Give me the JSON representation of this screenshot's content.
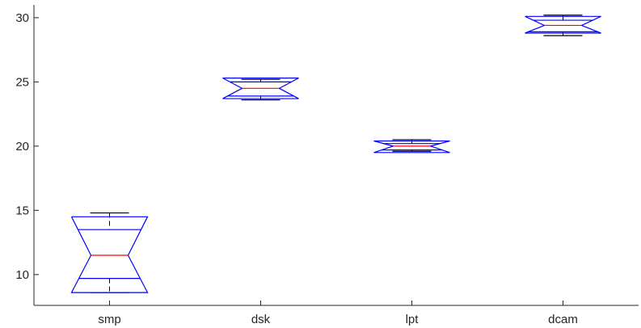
{
  "chart_data": {
    "type": "boxplot",
    "title": "",
    "xlabel": "",
    "ylabel": "",
    "ylim": [
      7.6,
      31.0
    ],
    "yticks": [
      10,
      15,
      20,
      25,
      30
    ],
    "grid": false,
    "notched": true,
    "colors": {
      "box": "#0000ff",
      "median": "#ff0000",
      "whisker": "#000000",
      "axis": "#262626"
    },
    "categories": [
      "smp",
      "dsk",
      "lpt",
      "dcam"
    ],
    "boxes": [
      {
        "name": "smp",
        "whisker_low": 8.6,
        "q1": 9.7,
        "notch_low": 8.6,
        "median": 11.5,
        "notch_high": 14.5,
        "q3": 13.5,
        "whisker_high": 14.8
      },
      {
        "name": "dsk",
        "whisker_low": 23.6,
        "q1": 23.9,
        "notch_low": 23.7,
        "median": 24.5,
        "notch_high": 25.3,
        "q3": 25.0,
        "whisker_high": 25.2
      },
      {
        "name": "lpt",
        "whisker_low": 19.6,
        "q1": 19.7,
        "notch_low": 19.5,
        "median": 20.0,
        "notch_high": 20.4,
        "q3": 20.2,
        "whisker_high": 20.5
      },
      {
        "name": "dcam",
        "whisker_low": 28.6,
        "q1": 28.9,
        "notch_low": 28.8,
        "median": 29.4,
        "notch_high": 30.1,
        "q3": 29.8,
        "whisker_high": 30.2
      }
    ]
  }
}
